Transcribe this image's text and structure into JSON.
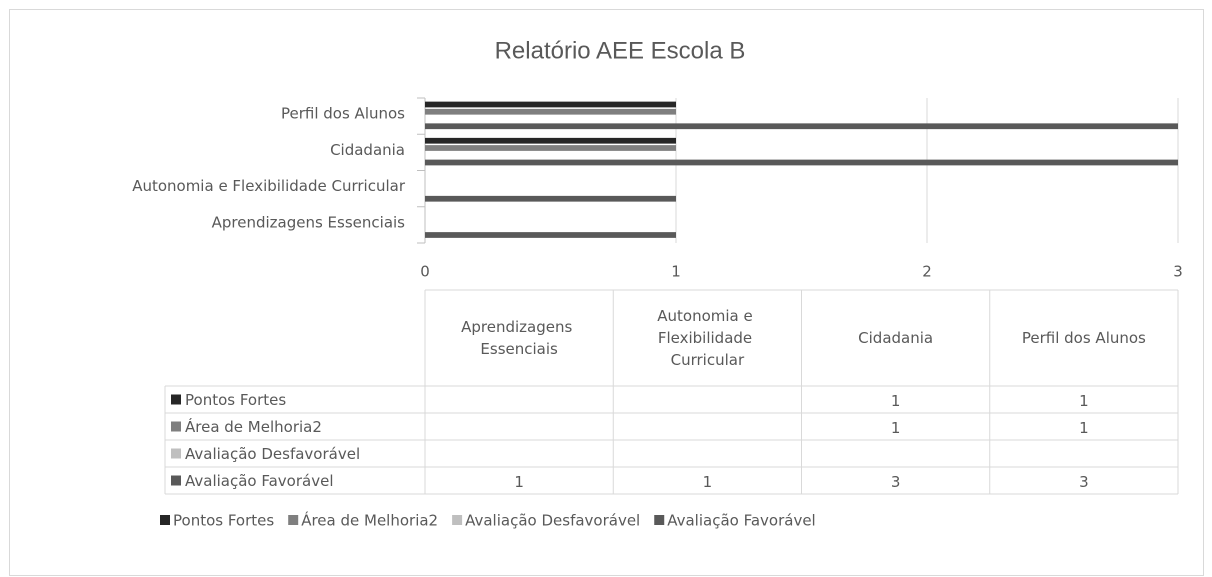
{
  "chart_data": {
    "type": "bar",
    "orientation": "horizontal",
    "title": "Relatório AEE Escola B",
    "categories": [
      "Aprendizagens Essenciais",
      "Autonomia e Flexibilidade Curricular",
      "Cidadania",
      "Perfil dos Alunos"
    ],
    "series": [
      {
        "name": "Pontos Fortes",
        "color": "#262626",
        "values": [
          null,
          null,
          1,
          1
        ]
      },
      {
        "name": "Área de Melhoria2",
        "color": "#7f7f7f",
        "values": [
          null,
          null,
          1,
          1
        ]
      },
      {
        "name": "Avaliação Desfavorável",
        "color": "#bfbfbf",
        "values": [
          null,
          null,
          null,
          null
        ]
      },
      {
        "name": "Avaliação Favorável",
        "color": "#595959",
        "values": [
          1,
          1,
          3,
          3
        ]
      }
    ],
    "xlim": [
      0,
      3
    ],
    "xticks": [
      0,
      1,
      2,
      3
    ],
    "grid": true,
    "data_table": true,
    "legend": "bottom"
  }
}
